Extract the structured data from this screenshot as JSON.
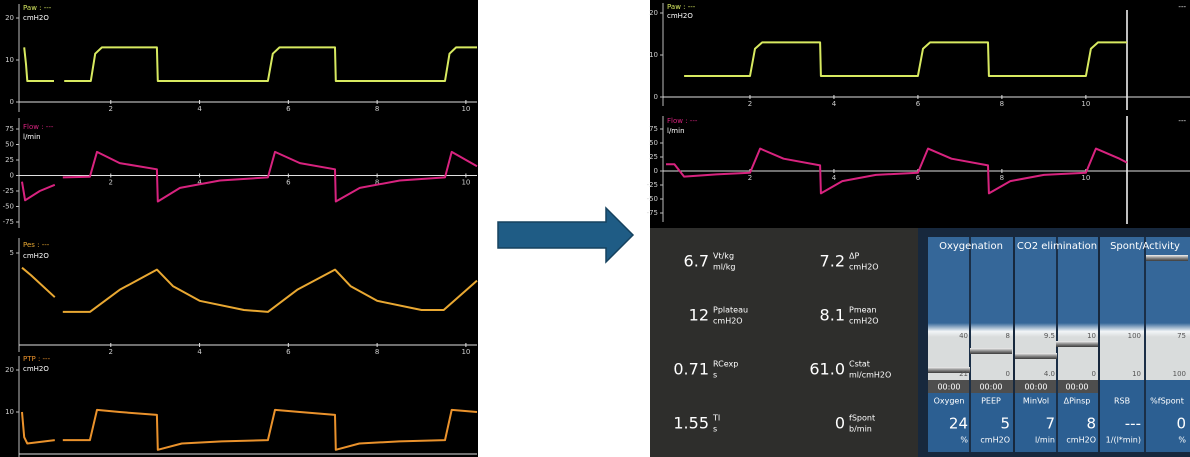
{
  "left_screen": {
    "waveforms": [
      {
        "name": "Paw : ---",
        "unit": "cmH2O",
        "color": "#d8ea60",
        "xlim": [
          0,
          10.25
        ],
        "ylim": [
          0,
          20
        ],
        "xticks": [
          2,
          4,
          6,
          8,
          10
        ],
        "yticks": [
          20,
          10,
          0
        ],
        "x": [
          0.05,
          0.09,
          0.12,
          0.72,
          0.82,
          0.95,
          1.55,
          1.65,
          1.8,
          3.04,
          3.06,
          5.54,
          5.65,
          5.8,
          7.05,
          7.07,
          9.53,
          9.63,
          9.78,
          10.25
        ],
        "values": [
          13,
          9,
          5,
          5,
          null,
          5,
          5,
          11.5,
          13,
          13,
          5,
          5,
          11.5,
          13,
          13,
          5,
          5,
          11.5,
          13,
          13
        ]
      },
      {
        "name": "Flow : ---",
        "unit": "l/min",
        "color": "#d8237f",
        "xlim": [
          0,
          10.25
        ],
        "ylim": [
          -75,
          75
        ],
        "xticks": [
          2,
          4,
          6,
          8,
          10
        ],
        "yticks": [
          75,
          50,
          25,
          0,
          -25,
          -50,
          -75
        ],
        "x": [
          0,
          0.07,
          0.4,
          0.74,
          0.82,
          0.92,
          1.53,
          1.69,
          2.2,
          3.04,
          3.06,
          3.56,
          4.46,
          5.54,
          5.7,
          6.26,
          7.05,
          7.07,
          7.61,
          8.51,
          9.53,
          9.68,
          10.25
        ],
        "values": [
          -10,
          -40,
          -25,
          -15,
          null,
          -3,
          -2,
          38,
          20,
          10,
          -42,
          -20,
          -8,
          -3,
          38,
          20,
          10,
          -42,
          -20,
          -8,
          -3,
          38,
          15
        ]
      },
      {
        "name": "Pes : ---",
        "unit": "cmH2O",
        "color": "#e9a832",
        "xlim": [
          0,
          10.25
        ],
        "ylim": [
          0,
          5
        ],
        "xticks": [
          2,
          4,
          6,
          8,
          10
        ],
        "yticks": [
          5
        ],
        "x": [
          0,
          0.2,
          0.74,
          0.82,
          0.92,
          1.53,
          2.2,
          3.04,
          3.4,
          4.0,
          5.0,
          5.54,
          6.2,
          7.05,
          7.4,
          8.0,
          9.0,
          9.5,
          10.25
        ],
        "values": [
          4.2,
          3.8,
          2.6,
          null,
          1.8,
          1.8,
          3.0,
          4.1,
          3.2,
          2.4,
          1.9,
          1.8,
          3.0,
          4.1,
          3.2,
          2.4,
          1.9,
          1.9,
          3.5
        ]
      },
      {
        "name": "PTP : ---",
        "unit": "cmH2O",
        "color": "#ea922c",
        "xlim": [
          0,
          10.25
        ],
        "ylim": [
          0,
          20
        ],
        "yticks": [
          20,
          10
        ],
        "x": [
          0,
          0.05,
          0.12,
          0.74,
          0.82,
          0.92,
          1.53,
          1.69,
          2.2,
          3.04,
          3.06,
          3.6,
          4.5,
          5.54,
          5.7,
          6.26,
          7.05,
          7.07,
          7.6,
          8.5,
          9.53,
          9.68,
          10.25
        ],
        "values": [
          10,
          4,
          2.5,
          3.3,
          null,
          3.3,
          3.3,
          10.5,
          10,
          9.3,
          1,
          2.5,
          3,
          3.3,
          10.5,
          10,
          9.3,
          1,
          2.5,
          3,
          3.3,
          10.5,
          10
        ]
      }
    ]
  },
  "right_screen": {
    "waveforms": [
      {
        "name": "Paw : ---",
        "unit": "cmH2O",
        "readout": "---",
        "color": "#d8ea60",
        "xlim": [
          0,
          12.48
        ],
        "ylim": [
          0,
          20
        ],
        "xticks": [
          2,
          4,
          6,
          8,
          10
        ],
        "yticks": [
          20,
          10,
          0
        ],
        "x": [
          0.43,
          2.0,
          2.12,
          2.29,
          3.67,
          3.69,
          6.0,
          6.12,
          6.29,
          7.67,
          7.69,
          10.0,
          10.12,
          10.29,
          10.98
        ],
        "values": [
          5,
          5,
          11.5,
          13,
          13,
          5,
          5,
          11.5,
          13,
          13,
          5,
          5,
          11.5,
          13,
          13
        ]
      },
      {
        "name": "Flow : ---",
        "unit": "l/min",
        "readout": "---",
        "color": "#d8237f",
        "xlim": [
          0,
          12.48
        ],
        "ylim": [
          -75,
          75
        ],
        "xticks": [
          2,
          4,
          6,
          8,
          10
        ],
        "yticks": [
          75,
          50,
          25,
          0,
          -25,
          -50,
          -75
        ],
        "x": [
          0,
          0.2,
          0.43,
          1.2,
          2.0,
          2.24,
          2.8,
          3.67,
          3.69,
          4.2,
          5.0,
          6.0,
          6.24,
          6.8,
          7.67,
          7.69,
          8.2,
          9.0,
          10.0,
          10.24,
          10.8,
          10.98
        ],
        "values": [
          12,
          12,
          -10,
          -6,
          -3,
          40,
          22,
          10,
          -40,
          -18,
          -7,
          -3,
          40,
          22,
          10,
          -40,
          -18,
          -7,
          -3,
          40,
          22,
          15
        ]
      }
    ],
    "monitoring": [
      {
        "value": "6.7",
        "label": "Vt/kg",
        "unit": "ml/kg"
      },
      {
        "value": "7.2",
        "label": "ΔP",
        "unit": "cmH2O"
      },
      {
        "value": "12",
        "label": "Pplateau",
        "unit": "cmH2O"
      },
      {
        "value": "8.1",
        "label": "Pmean",
        "unit": "cmH2O"
      },
      {
        "value": "0.71",
        "label": "RCexp",
        "unit": "s"
      },
      {
        "value": "61.0",
        "label": "Cstat",
        "unit": "ml/cmH2O"
      },
      {
        "value": "1.55",
        "label": "TI",
        "unit": "s"
      },
      {
        "value": "0",
        "label": "fSpont",
        "unit": "b/min"
      }
    ],
    "panels": [
      {
        "title": "Oxygenation",
        "controls": [
          {
            "top": "40",
            "bottom": "21",
            "timer": "00:00",
            "name": "Oxygen",
            "value": "24",
            "unit": "%"
          },
          {
            "top": "8",
            "bottom": "0",
            "timer": "00:00",
            "name": "PEEP",
            "value": "5",
            "unit": "cmH2O"
          }
        ]
      },
      {
        "title": "CO2 elimination",
        "controls": [
          {
            "top": "9.5",
            "bottom": "4.0",
            "timer": "00:00",
            "name": "MinVol",
            "value": "7",
            "unit": "l/min"
          },
          {
            "top": "10",
            "bottom": "0",
            "timer": "00:00",
            "name": "ΔPinsp",
            "value": "8",
            "unit": "cmH2O"
          }
        ]
      },
      {
        "title": "Spont/Activity",
        "controls": [
          {
            "top": "100",
            "bottom": "10",
            "name": "RSB",
            "value": "---",
            "unit": "1/(l*min)"
          },
          {
            "top": "75",
            "bottom": "100",
            "name": "%fSpont",
            "value": "0",
            "unit": "%"
          }
        ]
      }
    ]
  }
}
